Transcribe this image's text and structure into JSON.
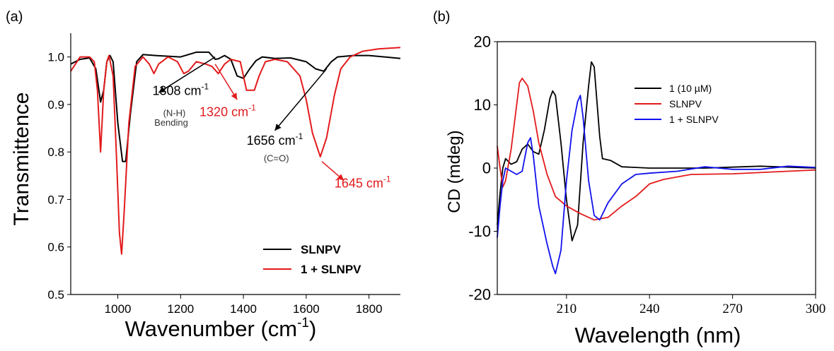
{
  "chart_data": [
    {
      "panel_label": "(a)",
      "type": "line",
      "xlabel": "Wavenumber (cm",
      "xlabel_sup": "-1",
      "xlabel_end": ")",
      "ylabel": "Transmittence",
      "xlim": [
        850,
        1900
      ],
      "ylim": [
        0.5,
        1.05
      ],
      "x_ticks": [
        1000,
        1200,
        1400,
        1600,
        1800
      ],
      "y_ticks": [
        0.5,
        0.6,
        0.7,
        0.8,
        0.9,
        1.0
      ],
      "legend": {
        "placement": "bottom-right"
      },
      "series": [
        {
          "name": "SLNPV",
          "color": "#000000",
          "points": [
            [
              850,
              0.985
            ],
            [
              880,
              0.995
            ],
            [
              910,
              0.998
            ],
            [
              930,
              0.975
            ],
            [
              945,
              0.905
            ],
            [
              955,
              0.93
            ],
            [
              965,
              0.99
            ],
            [
              975,
              1.003
            ],
            [
              985,
              0.99
            ],
            [
              1000,
              0.86
            ],
            [
              1015,
              0.78
            ],
            [
              1025,
              0.78
            ],
            [
              1040,
              0.88
            ],
            [
              1060,
              0.99
            ],
            [
              1080,
              1.005
            ],
            [
              1120,
              1.003
            ],
            [
              1200,
              1.0
            ],
            [
              1250,
              1.01
            ],
            [
              1290,
              1.01
            ],
            [
              1310,
              0.995
            ],
            [
              1320,
              0.996
            ],
            [
              1340,
              1.003
            ],
            [
              1360,
              0.995
            ],
            [
              1380,
              0.96
            ],
            [
              1400,
              0.955
            ],
            [
              1420,
              0.975
            ],
            [
              1440,
              0.992
            ],
            [
              1460,
              1.0
            ],
            [
              1500,
              0.997
            ],
            [
              1550,
              0.998
            ],
            [
              1600,
              0.99
            ],
            [
              1630,
              0.975
            ],
            [
              1656,
              0.97
            ],
            [
              1680,
              0.99
            ],
            [
              1700,
              1.0
            ],
            [
              1750,
              1.003
            ],
            [
              1800,
              1.003
            ],
            [
              1850,
              1.0
            ],
            [
              1900,
              0.997
            ]
          ]
        },
        {
          "name": "1 + SLNPV",
          "color": "#e31a1c",
          "points": [
            [
              850,
              0.97
            ],
            [
              880,
              1.0
            ],
            [
              910,
              1.0
            ],
            [
              925,
              0.99
            ],
            [
              935,
              0.93
            ],
            [
              945,
              0.8
            ],
            [
              955,
              0.93
            ],
            [
              965,
              0.99
            ],
            [
              972,
              1.003
            ],
            [
              985,
              0.96
            ],
            [
              995,
              0.8
            ],
            [
              1005,
              0.63
            ],
            [
              1012,
              0.585
            ],
            [
              1020,
              0.67
            ],
            [
              1035,
              0.86
            ],
            [
              1055,
              0.98
            ],
            [
              1080,
              1.0
            ],
            [
              1100,
              0.985
            ],
            [
              1115,
              0.965
            ],
            [
              1130,
              0.985
            ],
            [
              1160,
              1.0
            ],
            [
              1190,
              0.99
            ],
            [
              1210,
              0.965
            ],
            [
              1225,
              0.97
            ],
            [
              1250,
              0.99
            ],
            [
              1280,
              0.985
            ],
            [
              1300,
              0.98
            ],
            [
              1320,
              0.965
            ],
            [
              1340,
              0.985
            ],
            [
              1360,
              0.995
            ],
            [
              1390,
              0.99
            ],
            [
              1410,
              0.93
            ],
            [
              1435,
              0.93
            ],
            [
              1450,
              0.96
            ],
            [
              1470,
              0.99
            ],
            [
              1500,
              0.995
            ],
            [
              1540,
              0.99
            ],
            [
              1580,
              0.96
            ],
            [
              1600,
              0.91
            ],
            [
              1620,
              0.84
            ],
            [
              1645,
              0.79
            ],
            [
              1665,
              0.83
            ],
            [
              1690,
              0.92
            ],
            [
              1710,
              0.975
            ],
            [
              1740,
              1.0
            ],
            [
              1780,
              1.012
            ],
            [
              1830,
              1.017
            ],
            [
              1900,
              1.02
            ]
          ]
        }
      ],
      "annotations": [
        {
          "text": "1308 cm",
          "sup": "-1",
          "color": "#000000",
          "x": 1200,
          "y": 0.92,
          "arrow_from": [
            1310,
            1.0
          ],
          "arrow_to": [
            1130,
            0.925
          ]
        },
        {
          "text": "(N-H)",
          "color": "#333333",
          "x": 1180,
          "y": 0.875
        },
        {
          "text": "Bending",
          "color": "#333333",
          "x": 1170,
          "y": 0.855
        },
        {
          "text": "1320 cm",
          "sup": "-1",
          "color": "#e31a1c",
          "x": 1350,
          "y": 0.875,
          "arrow_from": [
            1310,
            0.985
          ],
          "arrow_to": [
            1380,
            0.91
          ]
        },
        {
          "text": "1656 cm",
          "sup": "-1",
          "color": "#000000",
          "x": 1500,
          "y": 0.815,
          "arrow_from": [
            1665,
            0.975
          ],
          "arrow_to": [
            1500,
            0.845
          ]
        },
        {
          "text": "(C=O)",
          "color": "#333333",
          "x": 1505,
          "y": 0.78
        },
        {
          "text": "1645 cm",
          "sup": "-1",
          "color": "#e31a1c",
          "x": 1780,
          "y": 0.725,
          "arrow_from": [
            1650,
            0.78
          ],
          "arrow_to": [
            1720,
            0.74
          ]
        }
      ]
    },
    {
      "panel_label": "(b)",
      "type": "line",
      "xlabel": "Wavelength (nm)",
      "ylabel": "CD (mdeg)",
      "xlim": [
        185,
        300
      ],
      "ylim": [
        -20,
        20
      ],
      "x_ticks": [
        210,
        240,
        270,
        300
      ],
      "y_ticks": [
        -20,
        -10,
        0,
        10,
        20
      ],
      "legend": {
        "placement": "top-right"
      },
      "series": [
        {
          "name": "1 (10 µM)",
          "color": "#000000",
          "points": [
            [
              185,
              -9
            ],
            [
              186,
              -4
            ],
            [
              187,
              0
            ],
            [
              188,
              1.5
            ],
            [
              190,
              0.6
            ],
            [
              192,
              1
            ],
            [
              194,
              3
            ],
            [
              196,
              3.8
            ],
            [
              198,
              2.6
            ],
            [
              200,
              2.2
            ],
            [
              202,
              6
            ],
            [
              204,
              11
            ],
            [
              205,
              12.2
            ],
            [
              206,
              11.5
            ],
            [
              208,
              4
            ],
            [
              210,
              -5
            ],
            [
              212,
              -11.5
            ],
            [
              214,
              -9
            ],
            [
              216,
              4
            ],
            [
              218,
              13
            ],
            [
              219,
              16.8
            ],
            [
              220,
              16
            ],
            [
              222,
              5
            ],
            [
              223,
              1.5
            ],
            [
              226,
              1.2
            ],
            [
              230,
              0.2
            ],
            [
              240,
              0
            ],
            [
              260,
              0
            ],
            [
              280,
              0.3
            ],
            [
              300,
              0
            ]
          ]
        },
        {
          "name": "SLNPV",
          "color": "#e31a1c",
          "points": [
            [
              185,
              3.5
            ],
            [
              186,
              0
            ],
            [
              187,
              -3
            ],
            [
              188,
              -2
            ],
            [
              190,
              3
            ],
            [
              192,
              10
            ],
            [
              193,
              13.5
            ],
            [
              194,
              14.2
            ],
            [
              196,
              13
            ],
            [
              198,
              9
            ],
            [
              200,
              4
            ],
            [
              203,
              -1
            ],
            [
              206,
              -4.5
            ],
            [
              210,
              -6
            ],
            [
              215,
              -7.2
            ],
            [
              220,
              -8.2
            ],
            [
              225,
              -7.8
            ],
            [
              230,
              -6
            ],
            [
              235,
              -4.5
            ],
            [
              240,
              -2.5
            ],
            [
              245,
              -1.8
            ],
            [
              255,
              -1
            ],
            [
              270,
              -0.9
            ],
            [
              285,
              -0.6
            ],
            [
              300,
              -0.3
            ]
          ]
        },
        {
          "name": "1 + SLNPV",
          "color": "#1010ee",
          "points": [
            [
              185,
              -11
            ],
            [
              186,
              -6
            ],
            [
              187,
              -2
            ],
            [
              188,
              0
            ],
            [
              190,
              -0.5
            ],
            [
              192,
              -1
            ],
            [
              194,
              -0.5
            ],
            [
              196,
              4
            ],
            [
              197,
              4.8
            ],
            [
              198,
              2
            ],
            [
              200,
              -6
            ],
            [
              203,
              -12
            ],
            [
              205,
              -15.5
            ],
            [
              206,
              -16.7
            ],
            [
              208,
              -13
            ],
            [
              210,
              -2
            ],
            [
              212,
              6
            ],
            [
              214,
              10.5
            ],
            [
              215,
              11.5
            ],
            [
              216,
              8
            ],
            [
              218,
              -2
            ],
            [
              220,
              -7.5
            ],
            [
              222,
              -8.2
            ],
            [
              225,
              -5.5
            ],
            [
              230,
              -2.5
            ],
            [
              235,
              -1
            ],
            [
              240,
              -0.8
            ],
            [
              250,
              -0.5
            ],
            [
              260,
              0.2
            ],
            [
              270,
              -0.2
            ],
            [
              280,
              -0.2
            ],
            [
              290,
              0.3
            ],
            [
              300,
              0.1
            ]
          ]
        }
      ]
    }
  ]
}
